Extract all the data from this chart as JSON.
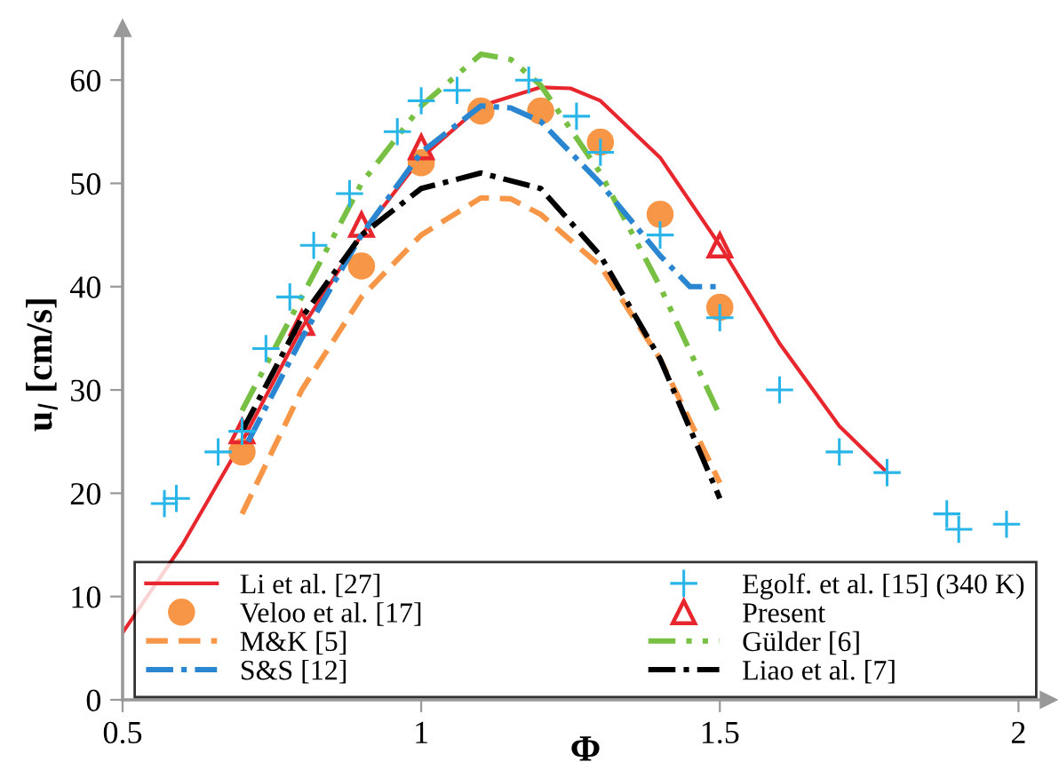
{
  "chart_data": {
    "type": "line",
    "xlabel": "Φ",
    "ylabel": "u$_{l}$ [cm/s]",
    "xlim": [
      0.5,
      2.05
    ],
    "ylim": [
      0,
      65
    ],
    "xticks": [
      0.5,
      1,
      1.5,
      2
    ],
    "yticks": [
      0,
      10,
      20,
      30,
      40,
      50,
      60
    ],
    "grid": false,
    "legend": "bottom",
    "series": [
      {
        "name": "Li et al. [27]",
        "color": "#e8262e",
        "line_style": "solid",
        "marker": "none",
        "x": [
          0.5,
          0.6,
          0.7,
          0.8,
          0.9,
          1.0,
          1.1,
          1.2,
          1.25,
          1.3,
          1.4,
          1.5,
          1.6,
          1.7,
          1.78
        ],
        "values": [
          6.5,
          15,
          25,
          36,
          45,
          52.5,
          57.5,
          59.3,
          59.2,
          58,
          52.5,
          44,
          34.5,
          26.5,
          22
        ]
      },
      {
        "name": "Egolf. et al. [15] (340 K)",
        "type": "scatter",
        "color": "#29b5e8",
        "marker": "cross",
        "x": [
          0.57,
          0.59,
          0.66,
          0.7,
          0.74,
          0.78,
          0.82,
          0.88,
          0.96,
          1.0,
          1.06,
          1.18,
          1.26,
          1.3,
          1.4,
          1.5,
          1.6,
          1.7,
          1.78,
          1.88,
          1.9,
          1.98
        ],
        "values": [
          19,
          19.5,
          24,
          26,
          34,
          39,
          44,
          49,
          55,
          58,
          59,
          60,
          56.5,
          53,
          45,
          37,
          30,
          24,
          22,
          18,
          16.5,
          17
        ]
      },
      {
        "name": "Veloo et al. [17]",
        "type": "scatter",
        "color": "#f79646",
        "marker": "circle",
        "x": [
          0.7,
          0.9,
          1.0,
          1.1,
          1.2,
          1.3,
          1.4,
          1.5
        ],
        "values": [
          24,
          42,
          52,
          57,
          57,
          54,
          47,
          38
        ]
      },
      {
        "name": "Present",
        "type": "scatter",
        "color": "#e8262e",
        "marker": "triangle",
        "x": [
          0.7,
          0.8,
          0.9,
          1.0,
          1.5
        ],
        "values": [
          26,
          36.5,
          46,
          53.5,
          44
        ]
      },
      {
        "name": "M&K [5]",
        "color": "#f79646",
        "line_style": "dashed",
        "marker": "none",
        "x": [
          0.7,
          0.8,
          0.9,
          1.0,
          1.1,
          1.15,
          1.2,
          1.3,
          1.4,
          1.5
        ],
        "values": [
          18,
          30,
          39,
          45,
          48.6,
          48.5,
          47,
          42,
          33,
          21
        ]
      },
      {
        "name": "Gülder [6]",
        "color": "#77c043",
        "line_style": "dashdotdot",
        "marker": "none",
        "x": [
          0.7,
          0.8,
          0.9,
          1.0,
          1.1,
          1.15,
          1.2,
          1.3,
          1.4,
          1.5
        ],
        "values": [
          28,
          39,
          50,
          57.5,
          62.5,
          62,
          59.5,
          51,
          40,
          27.5
        ]
      },
      {
        "name": "S&S [12]",
        "color": "#2a86d0",
        "line_style": "dashdot",
        "marker": "none",
        "x": [
          0.71,
          0.8,
          0.9,
          1.0,
          1.1,
          1.15,
          1.2,
          1.3,
          1.4,
          1.45,
          1.5
        ],
        "values": [
          25,
          35,
          45,
          53,
          57.5,
          57.3,
          56,
          50,
          43,
          40,
          40
        ]
      },
      {
        "name": "Liao et al. [7]",
        "color": "#000000",
        "line_style": "dashdot",
        "marker": "none",
        "x": [
          0.7,
          0.8,
          0.9,
          1.0,
          1.1,
          1.2,
          1.3,
          1.4,
          1.5
        ],
        "values": [
          26,
          37,
          45,
          49.5,
          51,
          49.5,
          43,
          33,
          19.5
        ]
      }
    ]
  }
}
